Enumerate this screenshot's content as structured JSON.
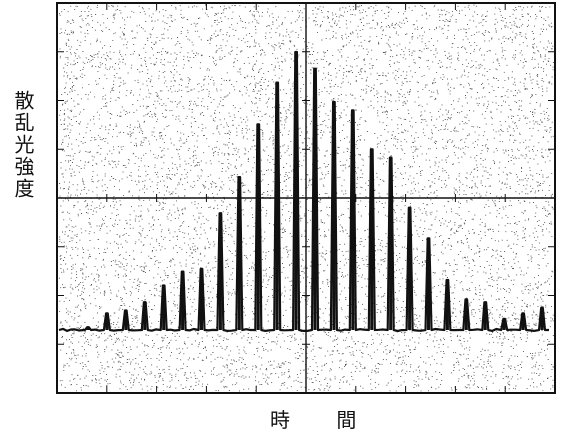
{
  "chart_data": {
    "type": "line",
    "title": "",
    "xlabel": "時 間",
    "ylabel": "散乱光強度",
    "grid": false,
    "peak_heights": [
      0.01,
      0.06,
      0.07,
      0.1,
      0.16,
      0.21,
      0.22,
      0.42,
      0.55,
      0.74,
      0.89,
      1.0,
      0.94,
      0.82,
      0.79,
      0.65,
      0.62,
      0.44,
      0.33,
      0.18,
      0.11,
      0.1,
      0.04,
      0.06,
      0.08
    ]
  }
}
